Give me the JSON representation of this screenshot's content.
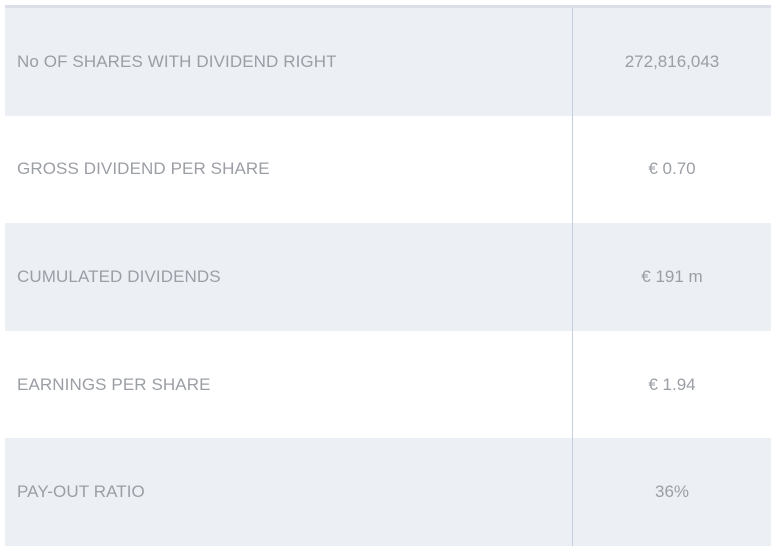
{
  "rows": [
    {
      "label": "No OF SHARES WITH DIVIDEND RIGHT",
      "value": "272,816,043"
    },
    {
      "label": "GROSS DIVIDEND PER SHARE",
      "value": "€ 0.70"
    },
    {
      "label": "CUMULATED DIVIDENDS",
      "value": "€ 191 m"
    },
    {
      "label": "EARNINGS PER SHARE",
      "value": "€ 1.94"
    },
    {
      "label": "PAY-OUT RATIO",
      "value": "36%"
    }
  ],
  "colors": {
    "shaded_row": "#eceff4",
    "text": "#9b9ea5",
    "divider": "#c5cfdf"
  }
}
